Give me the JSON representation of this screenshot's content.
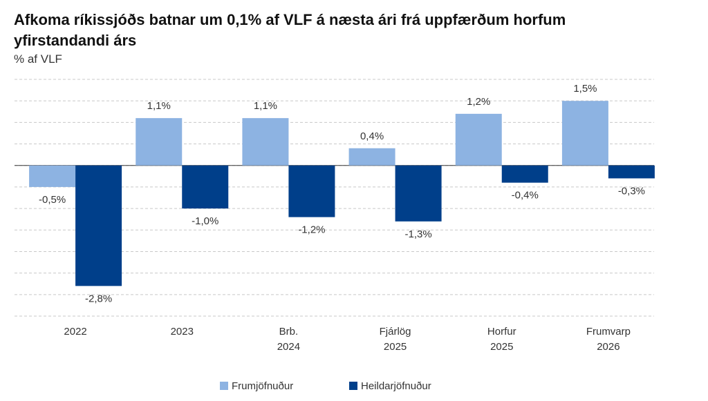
{
  "chart_data": {
    "type": "bar",
    "title": "Afkoma ríkissjóðs batnar um 0,1% af VLF á næsta ári frá uppfærðum horfum yfirstandandi árs",
    "subtitle": "% af VLF",
    "categories": [
      [
        "2022"
      ],
      [
        "2023"
      ],
      [
        "Brb.",
        "2024"
      ],
      [
        "Fjárlög",
        "2025"
      ],
      [
        "Horfur",
        "2025"
      ],
      [
        "Frumvarp",
        "2026"
      ]
    ],
    "series": [
      {
        "name": "Frumjöfnuður",
        "color": "#8db3e2",
        "values": [
          -0.5,
          1.1,
          1.1,
          0.4,
          1.2,
          1.5
        ],
        "value_labels": [
          "-0,5%",
          "1,1%",
          "1,1%",
          "0,4%",
          "1,2%",
          "1,5%"
        ]
      },
      {
        "name": "Heildarjöfnuður",
        "color": "#003f8a",
        "values": [
          -2.8,
          -1.0,
          -1.2,
          -1.3,
          -0.4,
          -0.3
        ],
        "value_labels": [
          "-2,8%",
          "-1,0%",
          "-1,2%",
          "-1,3%",
          "-0,4%",
          "-0,3%"
        ]
      }
    ],
    "ylim": [
      -3.5,
      2.0
    ],
    "yticks": [
      -3.5,
      -3,
      -2.5,
      -2,
      -1.5,
      -1,
      -0.5,
      0,
      0.5,
      1,
      1.5,
      2
    ],
    "grid": true
  }
}
